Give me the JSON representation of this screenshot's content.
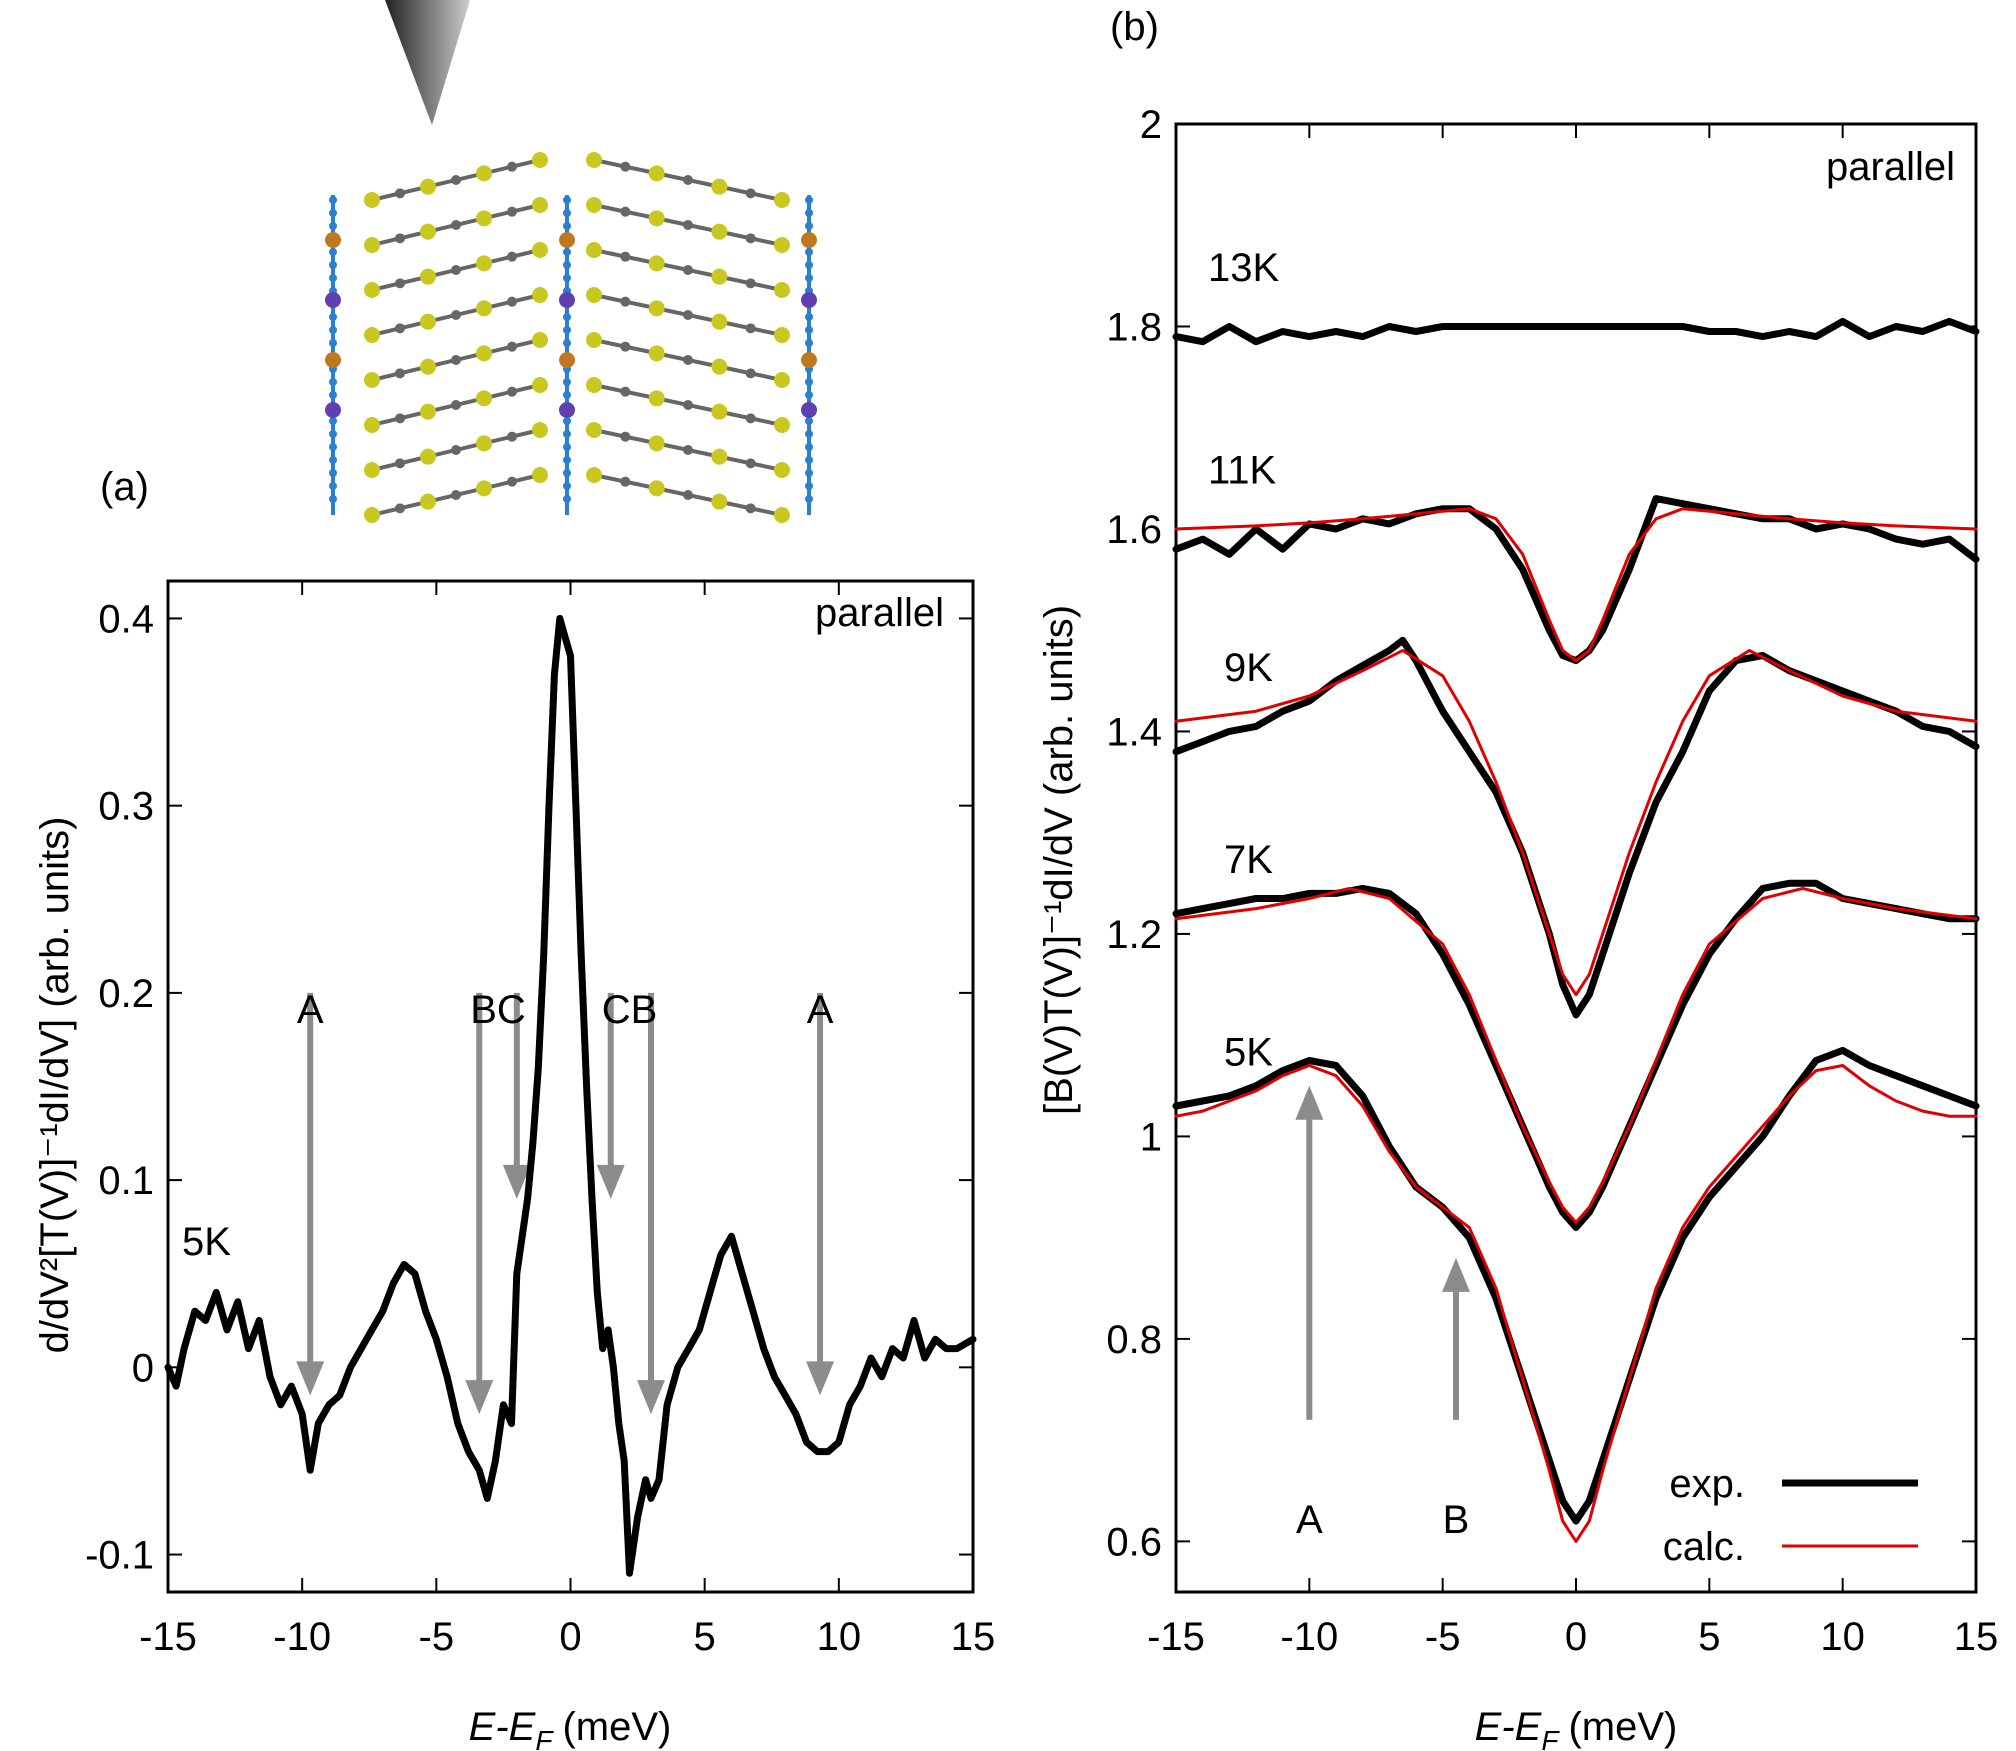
{
  "panel_labels": {
    "a": "(a)",
    "b": "(b)"
  },
  "colors": {
    "exp": "#000000",
    "calc": "#e00000",
    "arrow": "#8c8c8c",
    "molecule_yellow": "#c8c820",
    "molecule_gray": "#666666",
    "molecule_blue": "#2a7fd0",
    "molecule_orange": "#c07820",
    "molecule_purple": "#6040b0",
    "tip": "#333333"
  },
  "inset": {
    "name": "molecular-structure-with-stm-tip"
  },
  "chart_data": [
    {
      "panel": "a",
      "type": "line",
      "xlabel_parts": {
        "main": "E-E",
        "sub": "F",
        "unit": "(meV)"
      },
      "ylabel": "d/dV²[T(V)]⁻¹dI/dV] (arb. units)",
      "xlim": [
        -15,
        15
      ],
      "ylim": [
        -0.12,
        0.42
      ],
      "xticks": [
        -15,
        -10,
        -5,
        0,
        5,
        10,
        15
      ],
      "yticks": [
        -0.1,
        0,
        0.1,
        0.2,
        0.3,
        0.4
      ],
      "xtick_labels": [
        "-15",
        "-10",
        "-5",
        "0",
        "5",
        "10",
        "15"
      ],
      "ytick_labels": [
        "-0.1",
        "0",
        "0.1",
        "0.2",
        "0.3",
        "0.4"
      ],
      "corner_text": "parallel",
      "curve_label": "5K",
      "series": [
        {
          "x": [
            -15,
            -14.7,
            -14.4,
            -14,
            -13.6,
            -13.2,
            -12.8,
            -12.4,
            -12,
            -11.6,
            -11.2,
            -10.8,
            -10.4,
            -10,
            -9.7,
            -9.4,
            -9,
            -8.6,
            -8.2,
            -7.8,
            -7.4,
            -7,
            -6.6,
            -6.2,
            -5.8,
            -5.4,
            -5,
            -4.6,
            -4.2,
            -3.8,
            -3.4,
            -3.1,
            -2.8,
            -2.5,
            -2.2,
            -2,
            -1.8,
            -1.6,
            -1.4,
            -1.2,
            -1,
            -0.8,
            -0.6,
            -0.4,
            -0.2,
            0,
            0.2,
            0.4,
            0.6,
            0.8,
            1,
            1.2,
            1.4,
            1.6,
            1.8,
            2,
            2.2,
            2.5,
            2.8,
            3,
            3.3,
            3.6,
            4,
            4.4,
            4.8,
            5.2,
            5.6,
            6,
            6.4,
            6.8,
            7.2,
            7.6,
            8,
            8.4,
            8.8,
            9.2,
            9.6,
            10,
            10.4,
            10.8,
            11.2,
            11.6,
            12,
            12.4,
            12.8,
            13.2,
            13.6,
            14,
            14.4,
            15
          ],
          "y": [
            0.0,
            -0.01,
            0.01,
            0.03,
            0.025,
            0.04,
            0.02,
            0.035,
            0.01,
            0.025,
            -0.005,
            -0.02,
            -0.01,
            -0.025,
            -0.055,
            -0.03,
            -0.02,
            -0.015,
            0.0,
            0.01,
            0.02,
            0.03,
            0.045,
            0.055,
            0.05,
            0.03,
            0.015,
            -0.005,
            -0.03,
            -0.045,
            -0.055,
            -0.07,
            -0.05,
            -0.02,
            -0.03,
            0.05,
            0.07,
            0.09,
            0.12,
            0.16,
            0.22,
            0.3,
            0.37,
            0.4,
            0.39,
            0.38,
            0.3,
            0.22,
            0.15,
            0.09,
            0.04,
            0.01,
            0.02,
            0.0,
            -0.03,
            -0.05,
            -0.11,
            -0.08,
            -0.06,
            -0.07,
            -0.06,
            -0.02,
            0.0,
            0.01,
            0.02,
            0.04,
            0.06,
            0.07,
            0.05,
            0.03,
            0.01,
            -0.005,
            -0.015,
            -0.025,
            -0.04,
            -0.045,
            -0.045,
            -0.04,
            -0.02,
            -0.01,
            0.005,
            -0.005,
            0.01,
            0.005,
            0.025,
            0.005,
            0.015,
            0.01,
            0.01,
            0.015
          ]
        }
      ],
      "arrows": [
        {
          "label": "A",
          "x": -9.7,
          "y_start": 0.2,
          "y_end": -0.015
        },
        {
          "label": "B",
          "x": -3.4,
          "y_start": 0.2,
          "y_end": -0.025
        },
        {
          "label": "C",
          "x": -2.0,
          "y_start": 0.2,
          "y_end": 0.09
        },
        {
          "label": "C",
          "x": 1.5,
          "y_start": 0.2,
          "y_end": 0.09
        },
        {
          "label": "B",
          "x": 3.0,
          "y_start": 0.2,
          "y_end": -0.025
        },
        {
          "label": "A",
          "x": 9.3,
          "y_start": 0.2,
          "y_end": -0.015
        }
      ],
      "arrow_labels": [
        {
          "text": "A",
          "x": -9.7
        },
        {
          "text": "BC",
          "x": -2.7
        },
        {
          "text": "CB",
          "x": 2.2
        },
        {
          "text": "A",
          "x": 9.3
        }
      ]
    },
    {
      "panel": "b",
      "type": "line",
      "xlabel_parts": {
        "main": "E-E",
        "sub": "F",
        "unit": "(meV)"
      },
      "ylabel": "[B(V)T(V)]⁻¹dI/dV (arb. units)",
      "xlim": [
        -15,
        15
      ],
      "ylim": [
        0.55,
        2.0
      ],
      "xticks": [
        -15,
        -10,
        -5,
        0,
        5,
        10,
        15
      ],
      "yticks": [
        0.6,
        0.8,
        1,
        1.2,
        1.4,
        1.6,
        1.8,
        2
      ],
      "xtick_labels": [
        "-15",
        "-10",
        "-5",
        "0",
        "5",
        "10",
        "15"
      ],
      "ytick_labels": [
        "0.6",
        "0.8",
        "1",
        "1.2",
        "1.4",
        "1.6",
        "1.8",
        "2"
      ],
      "corner_text": "parallel",
      "legend": [
        {
          "label": "exp.",
          "color": "#000000"
        },
        {
          "label": "calc.",
          "color": "#e00000"
        }
      ],
      "legend_position": "bottom-right",
      "series": [
        {
          "name": "13K",
          "kind": "exp",
          "x": [
            -15,
            -14,
            -13,
            -12,
            -11,
            -10,
            -9,
            -8,
            -7,
            -6,
            -5,
            -4,
            -3,
            -2,
            -1,
            0,
            1,
            2,
            3,
            4,
            5,
            6,
            7,
            8,
            9,
            10,
            11,
            12,
            13,
            14,
            15
          ],
          "y": [
            1.79,
            1.785,
            1.8,
            1.785,
            1.795,
            1.79,
            1.795,
            1.79,
            1.8,
            1.795,
            1.8,
            1.8,
            1.8,
            1.8,
            1.8,
            1.8,
            1.8,
            1.8,
            1.8,
            1.8,
            1.795,
            1.795,
            1.79,
            1.795,
            1.79,
            1.805,
            1.79,
            1.8,
            1.795,
            1.805,
            1.795
          ]
        },
        {
          "name": "11K",
          "kind": "exp",
          "x": [
            -15,
            -14,
            -13,
            -12,
            -11,
            -10,
            -9,
            -8,
            -7,
            -6,
            -5,
            -4,
            -3,
            -2,
            -1,
            -0.5,
            0,
            0.5,
            1,
            2,
            3,
            4,
            5,
            6,
            7,
            8,
            9,
            10,
            11,
            12,
            13,
            14,
            15
          ],
          "y": [
            1.58,
            1.59,
            1.575,
            1.6,
            1.58,
            1.605,
            1.6,
            1.61,
            1.605,
            1.615,
            1.62,
            1.62,
            1.6,
            1.56,
            1.5,
            1.475,
            1.47,
            1.48,
            1.5,
            1.56,
            1.63,
            1.625,
            1.62,
            1.615,
            1.61,
            1.61,
            1.6,
            1.605,
            1.6,
            1.59,
            1.585,
            1.59,
            1.57
          ]
        },
        {
          "name": "11K",
          "kind": "calc",
          "x": [
            -15,
            -12,
            -10,
            -8,
            -6,
            -4,
            -3,
            -2,
            -1,
            -0.5,
            0,
            0.5,
            1,
            2,
            3,
            4,
            6,
            8,
            10,
            12,
            15
          ],
          "y": [
            1.6,
            1.603,
            1.606,
            1.61,
            1.615,
            1.62,
            1.61,
            1.575,
            1.51,
            1.48,
            1.47,
            1.48,
            1.51,
            1.575,
            1.61,
            1.62,
            1.615,
            1.61,
            1.606,
            1.603,
            1.6
          ]
        },
        {
          "name": "9K",
          "kind": "exp",
          "x": [
            -15,
            -14,
            -13,
            -12,
            -11,
            -10,
            -9,
            -8,
            -7,
            -6.5,
            -6,
            -5,
            -4,
            -3,
            -2,
            -1,
            -0.5,
            0,
            0.5,
            1,
            2,
            3,
            4,
            5,
            6,
            7,
            8,
            9,
            10,
            11,
            12,
            13,
            14,
            15
          ],
          "y": [
            1.38,
            1.39,
            1.4,
            1.405,
            1.42,
            1.43,
            1.45,
            1.465,
            1.48,
            1.49,
            1.47,
            1.42,
            1.38,
            1.34,
            1.28,
            1.2,
            1.15,
            1.12,
            1.14,
            1.18,
            1.26,
            1.33,
            1.38,
            1.44,
            1.47,
            1.475,
            1.46,
            1.45,
            1.44,
            1.43,
            1.42,
            1.405,
            1.4,
            1.385
          ]
        },
        {
          "name": "9K",
          "kind": "calc",
          "x": [
            -15,
            -12,
            -10,
            -8,
            -6.5,
            -5,
            -4,
            -3,
            -2,
            -1,
            -0.5,
            0,
            0.5,
            1,
            2,
            3,
            4,
            5,
            6.5,
            8,
            10,
            12,
            15
          ],
          "y": [
            1.41,
            1.42,
            1.435,
            1.46,
            1.48,
            1.455,
            1.41,
            1.35,
            1.28,
            1.2,
            1.16,
            1.14,
            1.16,
            1.2,
            1.28,
            1.35,
            1.41,
            1.455,
            1.48,
            1.46,
            1.435,
            1.42,
            1.41
          ]
        },
        {
          "name": "7K",
          "kind": "exp",
          "x": [
            -15,
            -14,
            -13,
            -12,
            -11,
            -10,
            -9,
            -8,
            -7,
            -6,
            -5,
            -4,
            -3,
            -2,
            -1,
            -0.5,
            0,
            0.5,
            1,
            2,
            3,
            4,
            5,
            6,
            7,
            8,
            9,
            10,
            11,
            12,
            13,
            14,
            15
          ],
          "y": [
            1.22,
            1.225,
            1.23,
            1.235,
            1.235,
            1.24,
            1.24,
            1.245,
            1.24,
            1.22,
            1.18,
            1.13,
            1.07,
            1.01,
            0.95,
            0.925,
            0.91,
            0.925,
            0.95,
            1.01,
            1.07,
            1.13,
            1.18,
            1.215,
            1.245,
            1.25,
            1.25,
            1.235,
            1.23,
            1.225,
            1.22,
            1.215,
            1.215
          ]
        },
        {
          "name": "7K",
          "kind": "calc",
          "x": [
            -15,
            -12,
            -10,
            -8.5,
            -7,
            -5,
            -4,
            -3,
            -2,
            -1,
            -0.5,
            0,
            0.5,
            1,
            2,
            3,
            4,
            5,
            7,
            8.5,
            10,
            12,
            15
          ],
          "y": [
            1.215,
            1.225,
            1.235,
            1.245,
            1.235,
            1.19,
            1.14,
            1.075,
            1.01,
            0.955,
            0.93,
            0.915,
            0.93,
            0.955,
            1.01,
            1.075,
            1.14,
            1.19,
            1.235,
            1.245,
            1.235,
            1.225,
            1.215
          ]
        },
        {
          "name": "5K",
          "kind": "exp",
          "x": [
            -15,
            -14,
            -13,
            -12,
            -11,
            -10,
            -9,
            -8,
            -7,
            -6,
            -5,
            -4,
            -3,
            -2,
            -1,
            -0.5,
            0,
            0.5,
            1,
            2,
            3,
            4,
            5,
            6,
            7,
            8,
            9,
            10,
            11,
            12,
            13,
            14,
            15
          ],
          "y": [
            1.03,
            1.035,
            1.04,
            1.05,
            1.065,
            1.075,
            1.07,
            1.04,
            0.99,
            0.95,
            0.93,
            0.9,
            0.84,
            0.76,
            0.68,
            0.64,
            0.62,
            0.64,
            0.68,
            0.76,
            0.84,
            0.9,
            0.94,
            0.97,
            1.0,
            1.04,
            1.075,
            1.085,
            1.07,
            1.06,
            1.05,
            1.04,
            1.03
          ]
        },
        {
          "name": "5K",
          "kind": "calc",
          "x": [
            -15,
            -14,
            -13,
            -12,
            -11,
            -10,
            -9,
            -8,
            -7,
            -6,
            -5,
            -4,
            -3,
            -2,
            -1,
            -0.5,
            0,
            0.5,
            1,
            2,
            3,
            4,
            5,
            6,
            7,
            8,
            9,
            10,
            11,
            12,
            13,
            14,
            15
          ],
          "y": [
            1.02,
            1.025,
            1.035,
            1.045,
            1.06,
            1.07,
            1.06,
            1.03,
            0.985,
            0.95,
            0.93,
            0.91,
            0.85,
            0.76,
            0.67,
            0.62,
            0.6,
            0.62,
            0.67,
            0.76,
            0.85,
            0.91,
            0.95,
            0.98,
            1.01,
            1.04,
            1.065,
            1.07,
            1.05,
            1.035,
            1.025,
            1.02,
            1.02
          ]
        }
      ],
      "curve_labels": [
        {
          "text": "13K",
          "x": -13.8,
          "y": 1.845
        },
        {
          "text": "11K",
          "x": -13.8,
          "y": 1.645
        },
        {
          "text": "9K",
          "x": -13.2,
          "y": 1.45
        },
        {
          "text": "7K",
          "x": -13.2,
          "y": 1.26
        },
        {
          "text": "5K",
          "x": -13.2,
          "y": 1.07
        }
      ],
      "arrows": [
        {
          "label": "A",
          "x": -10.0,
          "y_start": 0.72,
          "y_end": 1.05
        },
        {
          "label": "B",
          "x": -4.5,
          "y_start": 0.72,
          "y_end": 0.88
        }
      ],
      "arrow_labels": [
        {
          "text": "A",
          "x": -10.0
        },
        {
          "text": "B",
          "x": -4.5
        }
      ]
    }
  ]
}
